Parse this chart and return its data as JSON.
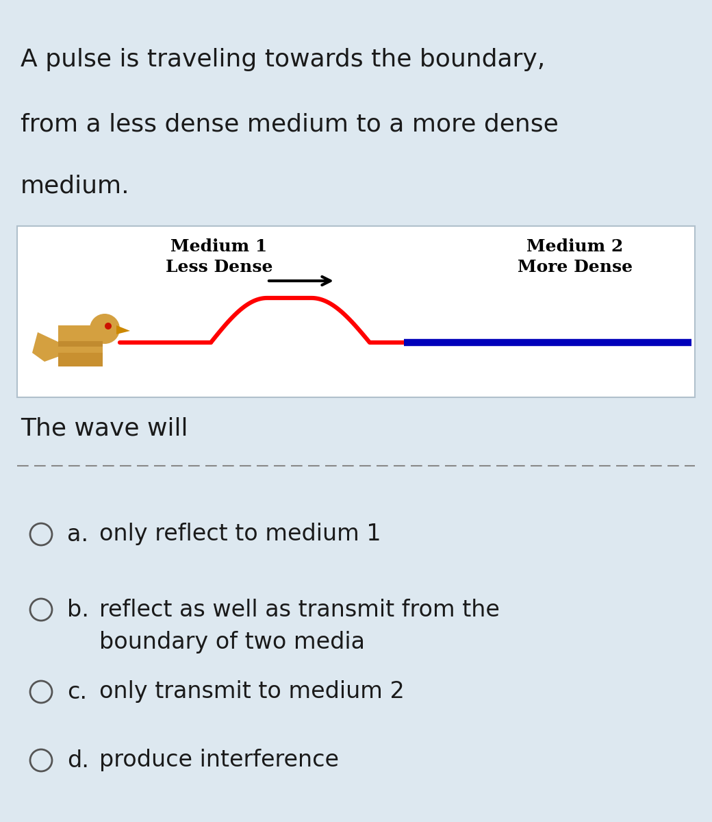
{
  "bg_color": "#dde8f0",
  "bg_color_diagram": "#ffffff",
  "question_lines": [
    "A pulse is traveling towards the boundary,",
    "from a less dense medium to a more dense",
    "medium."
  ],
  "medium1_label1": "Medium 1",
  "medium1_label2": "Less Dense",
  "medium2_label1": "Medium 2",
  "medium2_label2": "More Dense",
  "wave_will_text": "The wave will",
  "choices": [
    {
      "letter": "a.",
      "text1": "only reflect to medium 1",
      "text2": null
    },
    {
      "letter": "b.",
      "text1": "reflect as well as transmit from the",
      "text2": "boundary of two media"
    },
    {
      "letter": "c.",
      "text1": "only transmit to medium 2",
      "text2": null
    },
    {
      "letter": "d.",
      "text1": "produce interference",
      "text2": null
    }
  ],
  "red_line_color": "#ff0000",
  "blue_line_color": "#0000bb",
  "arrow_color": "#000000",
  "text_color": "#1a1a1a",
  "divider_color": "#888888"
}
